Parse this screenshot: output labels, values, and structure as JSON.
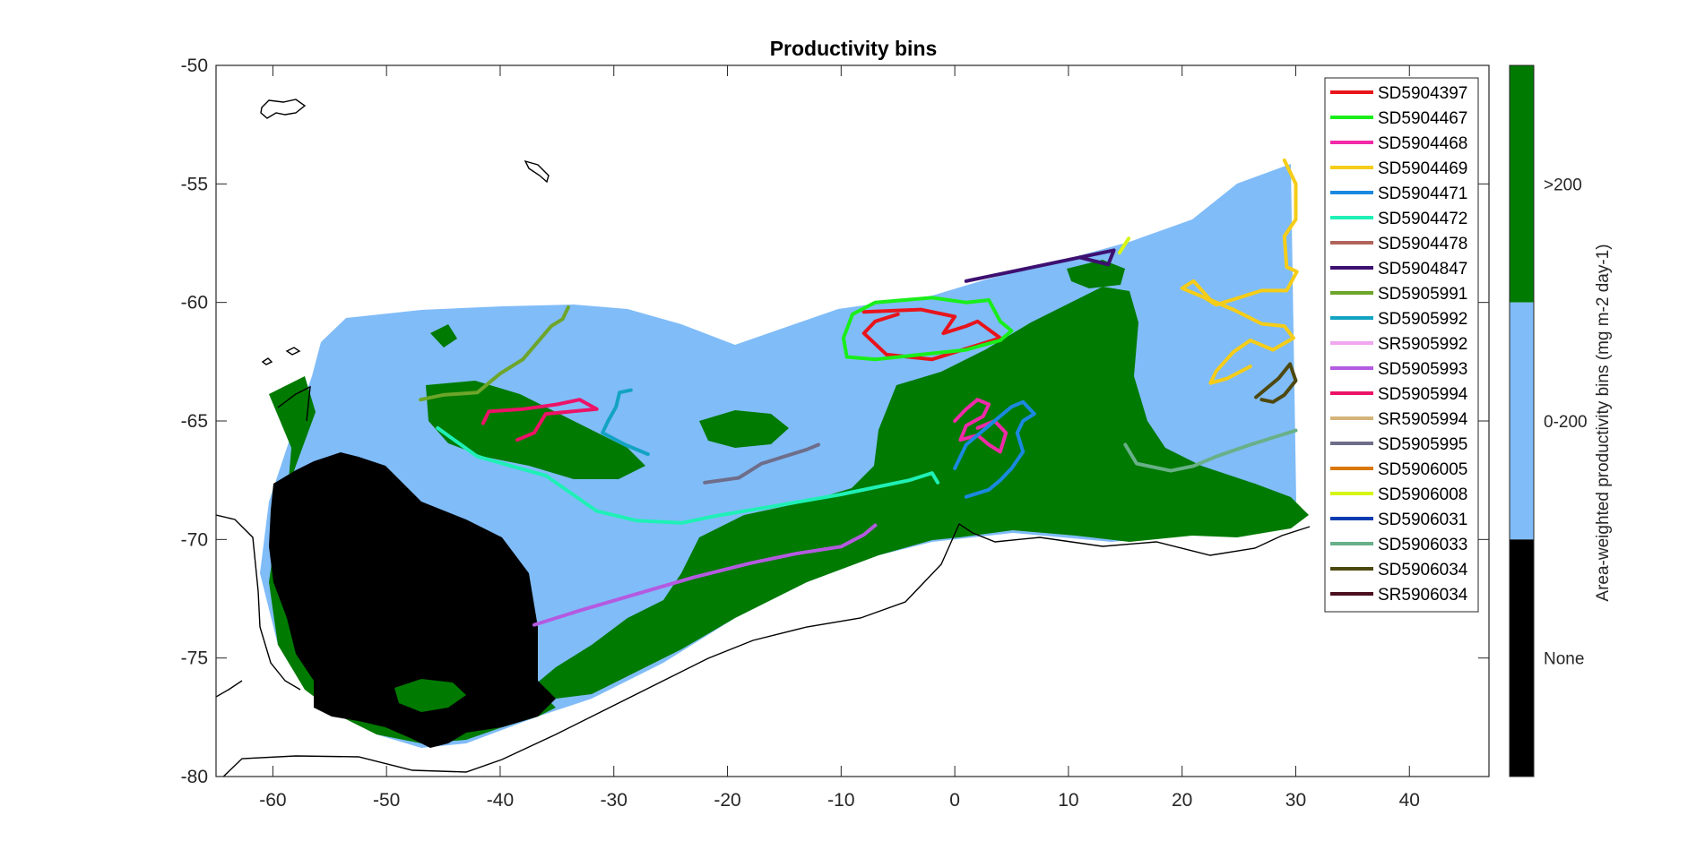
{
  "title": "Productivity bins",
  "colors": {
    "none": "#000000",
    "low": "#80bcf8",
    "high": "#007a00",
    "coast": "#000000"
  },
  "x_axis": {
    "ticks": [
      "-60",
      "-50",
      "-40",
      "-30",
      "-20",
      "-10",
      "0",
      "10",
      "20",
      "30",
      "40"
    ]
  },
  "y_axis": {
    "ticks": [
      "-50",
      "-55",
      "-60",
      "-65",
      "-70",
      "-75",
      "-80"
    ]
  },
  "colorbar": {
    "label": "Area-weighted productivity bins (mg m-2 day-1)",
    "categories": [
      {
        "label": ">200",
        "color": "#007a00"
      },
      {
        "label": "0-200",
        "color": "#80bcf8"
      },
      {
        "label": "None",
        "color": "#000000"
      }
    ]
  },
  "legend": [
    {
      "name": "SD5904397",
      "color": "#e8141b"
    },
    {
      "name": "SD5904467",
      "color": "#1aee1a"
    },
    {
      "name": "SD5904468",
      "color": "#f02aa8"
    },
    {
      "name": "SD5904469",
      "color": "#f5cd18"
    },
    {
      "name": "SD5904471",
      "color": "#1b88e0"
    },
    {
      "name": "SD5904472",
      "color": "#1ff0b6"
    },
    {
      "name": "SD5904478",
      "color": "#b0645a"
    },
    {
      "name": "SD5904847",
      "color": "#3d1070"
    },
    {
      "name": "SD5905991",
      "color": "#6da52a"
    },
    {
      "name": "SD5905992",
      "color": "#13a3c3"
    },
    {
      "name": "SR5905992",
      "color": "#f0a7f0"
    },
    {
      "name": "SD5905993",
      "color": "#b45ae0"
    },
    {
      "name": "SD5905994",
      "color": "#ec1367"
    },
    {
      "name": "SR5905994",
      "color": "#d4b478"
    },
    {
      "name": "SD5905995",
      "color": "#6e6e8a"
    },
    {
      "name": "SD5906005",
      "color": "#d97708"
    },
    {
      "name": "SD5906008",
      "color": "#d6f514"
    },
    {
      "name": "SD5906031",
      "color": "#0d3cb0"
    },
    {
      "name": "SD5906033",
      "color": "#68b088"
    },
    {
      "name": "SD5906034",
      "color": "#4d4810"
    },
    {
      "name": "SR5906034",
      "color": "#4a0f1e"
    }
  ],
  "chart_data": {
    "type": "map",
    "title": "Productivity bins",
    "xlim": [
      -65,
      47
    ],
    "ylim": [
      -80,
      -50
    ],
    "x_ticks": [
      -60,
      -50,
      -40,
      -30,
      -20,
      -10,
      0,
      10,
      20,
      30,
      40
    ],
    "y_ticks": [
      -50,
      -55,
      -60,
      -65,
      -70,
      -75,
      -80
    ],
    "categories": [
      "None",
      "0-200",
      ">200"
    ],
    "float_tracks": [
      {
        "name": "SD5904397",
        "color": "#e8141b",
        "lonlat": [
          [
            -8,
            -60.4
          ],
          [
            -3,
            -60.3
          ],
          [
            0,
            -60.6
          ],
          [
            -1,
            -61.3
          ],
          [
            1,
            -61.0
          ],
          [
            2,
            -60.8
          ],
          [
            4,
            -61.5
          ],
          [
            -2,
            -62.4
          ],
          [
            -6,
            -62.2
          ],
          [
            -8,
            -61.3
          ],
          [
            -7,
            -60.8
          ],
          [
            -5,
            -60.5
          ]
        ]
      },
      {
        "name": "SD5904467",
        "color": "#1aee1a",
        "lonlat": [
          [
            -9,
            -60.5
          ],
          [
            -7,
            -60.0
          ],
          [
            -2,
            -59.8
          ],
          [
            1,
            -60.0
          ],
          [
            3,
            -59.9
          ],
          [
            4,
            -60.8
          ],
          [
            5,
            -61.2
          ],
          [
            4,
            -61.6
          ],
          [
            1,
            -62.0
          ],
          [
            -3,
            -62.2
          ],
          [
            -7,
            -62.4
          ],
          [
            -9.5,
            -62.3
          ],
          [
            -9.8,
            -61.5
          ],
          [
            -9,
            -60.5
          ]
        ]
      },
      {
        "name": "SD5904468",
        "color": "#f02aa8",
        "lonlat": [
          [
            0,
            -65.0
          ],
          [
            1,
            -64.5
          ],
          [
            2,
            -64.1
          ],
          [
            3,
            -64.3
          ],
          [
            2.5,
            -64.8
          ],
          [
            1,
            -65.2
          ],
          [
            0.5,
            -65.8
          ],
          [
            2,
            -65.6
          ],
          [
            3,
            -66.0
          ],
          [
            4,
            -66.3
          ],
          [
            4.5,
            -65.5
          ],
          [
            3.5,
            -65.0
          ],
          [
            2,
            -65.3
          ]
        ]
      },
      {
        "name": "SD5904469",
        "color": "#f5cd18",
        "lonlat": [
          [
            29,
            -54.0
          ],
          [
            30,
            -55.0
          ],
          [
            30,
            -56.5
          ],
          [
            29,
            -57.2
          ],
          [
            29.2,
            -58.5
          ],
          [
            30.1,
            -58.7
          ],
          [
            29.2,
            -59.5
          ],
          [
            27,
            -59.5
          ],
          [
            25,
            -59.8
          ],
          [
            23,
            -60.1
          ],
          [
            22,
            -59.8
          ],
          [
            20,
            -59.4
          ],
          [
            21,
            -59.1
          ],
          [
            22.5,
            -59.9
          ],
          [
            24.5,
            -60.3
          ],
          [
            27,
            -60.9
          ],
          [
            29,
            -61.0
          ],
          [
            29.8,
            -61.5
          ],
          [
            28,
            -62.0
          ],
          [
            26,
            -61.6
          ],
          [
            24.5,
            -62.1
          ],
          [
            23,
            -62.9
          ],
          [
            22.5,
            -63.4
          ],
          [
            24,
            -63.2
          ],
          [
            26,
            -62.7
          ]
        ]
      },
      {
        "name": "SD5904471",
        "color": "#1b88e0",
        "lonlat": [
          [
            1,
            -68.2
          ],
          [
            3,
            -67.9
          ],
          [
            4,
            -67.5
          ],
          [
            5,
            -67.0
          ],
          [
            6,
            -66.3
          ],
          [
            5.5,
            -65.5
          ],
          [
            6,
            -65.0
          ],
          [
            7,
            -64.7
          ],
          [
            6,
            -64.2
          ],
          [
            5,
            -64.4
          ],
          [
            4,
            -64.8
          ],
          [
            3,
            -65.2
          ],
          [
            2,
            -65.6
          ],
          [
            1,
            -66.0
          ],
          [
            0,
            -67.0
          ]
        ]
      },
      {
        "name": "SD5904472",
        "color": "#1ff0b6",
        "lonlat": [
          [
            -45.5,
            -65.3
          ],
          [
            -42,
            -66.5
          ],
          [
            -36,
            -67.3
          ],
          [
            -31.5,
            -68.8
          ],
          [
            -28,
            -69.2
          ],
          [
            -24,
            -69.3
          ],
          [
            -21,
            -69.0
          ],
          [
            -16,
            -68.6
          ],
          [
            -10,
            -68.1
          ],
          [
            -4,
            -67.5
          ],
          [
            -2,
            -67.2
          ],
          [
            -1.5,
            -67.6
          ]
        ]
      },
      {
        "name": "SD5904847",
        "color": "#3d1070",
        "lonlat": [
          [
            1,
            -59.1
          ],
          [
            5,
            -58.7
          ],
          [
            9,
            -58.3
          ],
          [
            12,
            -58.0
          ],
          [
            14,
            -57.8
          ],
          [
            13.5,
            -58.4
          ],
          [
            11,
            -58.1
          ]
        ]
      },
      {
        "name": "SD5905991",
        "color": "#6da52a",
        "lonlat": [
          [
            -47,
            -64.1
          ],
          [
            -45,
            -63.9
          ],
          [
            -42,
            -63.8
          ],
          [
            -40,
            -63.0
          ],
          [
            -38,
            -62.4
          ],
          [
            -35.5,
            -61.0
          ],
          [
            -34.5,
            -60.7
          ],
          [
            -34,
            -60.2
          ]
        ]
      },
      {
        "name": "SD5905992",
        "color": "#13a3c3",
        "lonlat": [
          [
            -27,
            -66.4
          ],
          [
            -29,
            -66.0
          ],
          [
            -31,
            -65.5
          ],
          [
            -30.5,
            -65.0
          ],
          [
            -29.8,
            -64.4
          ],
          [
            -29.5,
            -63.8
          ],
          [
            -28.5,
            -63.7
          ]
        ]
      },
      {
        "name": "SD5905993",
        "color": "#b45ae0",
        "lonlat": [
          [
            -37,
            -73.6
          ],
          [
            -33,
            -73.0
          ],
          [
            -28,
            -72.3
          ],
          [
            -23,
            -71.6
          ],
          [
            -18,
            -71.0
          ],
          [
            -14,
            -70.6
          ],
          [
            -10,
            -70.3
          ],
          [
            -8,
            -69.8
          ],
          [
            -7,
            -69.4
          ]
        ]
      },
      {
        "name": "SD5905994",
        "color": "#ec1367",
        "lonlat": [
          [
            -41.5,
            -65.1
          ],
          [
            -41,
            -64.6
          ],
          [
            -38,
            -64.5
          ],
          [
            -35,
            -64.3
          ],
          [
            -33,
            -64.1
          ],
          [
            -31.5,
            -64.5
          ],
          [
            -36,
            -64.7
          ],
          [
            -37,
            -65.5
          ],
          [
            -38.5,
            -65.8
          ]
        ]
      },
      {
        "name": "SD5905995",
        "color": "#6e6e8a",
        "lonlat": [
          [
            -22,
            -67.6
          ],
          [
            -19,
            -67.4
          ],
          [
            -17,
            -66.8
          ],
          [
            -13,
            -66.2
          ],
          [
            -12,
            -66.0
          ]
        ]
      },
      {
        "name": "SD5906008",
        "color": "#d6f514",
        "lonlat": [
          [
            14.5,
            -57.9
          ],
          [
            15.3,
            -57.3
          ]
        ]
      },
      {
        "name": "SD5906033",
        "color": "#68b088",
        "lonlat": [
          [
            15,
            -66.0
          ],
          [
            16,
            -66.8
          ],
          [
            19,
            -67.1
          ],
          [
            21,
            -66.9
          ],
          [
            23,
            -66.5
          ],
          [
            26,
            -66.0
          ],
          [
            30,
            -65.4
          ]
        ]
      },
      {
        "name": "SD5906034",
        "color": "#4d4810",
        "lonlat": [
          [
            26.5,
            -64.0
          ],
          [
            27.5,
            -63.6
          ],
          [
            28.5,
            -63.2
          ],
          [
            29.5,
            -62.6
          ],
          [
            30,
            -63.3
          ],
          [
            29,
            -63.9
          ],
          [
            28,
            -64.2
          ],
          [
            27,
            -64.1
          ]
        ]
      }
    ]
  }
}
